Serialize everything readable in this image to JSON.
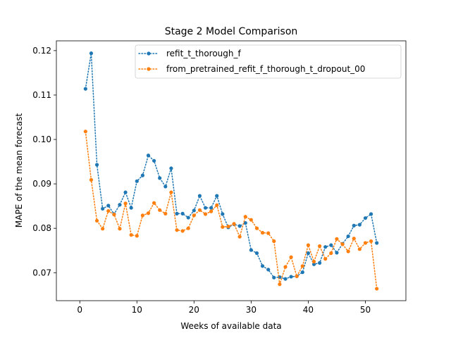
{
  "chart_data": {
    "type": "line",
    "title": "Stage 2 Model Comparison",
    "xlabel": "Weeks of available data",
    "ylabel": "MAPE of the mean forecast",
    "xlim": [
      -4.1,
      57.1
    ],
    "ylim": [
      0.0637,
      0.1222
    ],
    "xticks": [
      0,
      10,
      20,
      30,
      40,
      50
    ],
    "yticks": [
      0.07,
      0.08,
      0.09,
      0.1,
      0.11,
      0.12
    ],
    "grid": false,
    "legend_position": "top-right",
    "x": [
      1,
      2,
      3,
      4,
      5,
      6,
      7,
      8,
      9,
      10,
      11,
      12,
      13,
      14,
      15,
      16,
      17,
      18,
      19,
      20,
      21,
      22,
      23,
      24,
      25,
      26,
      27,
      28,
      29,
      30,
      31,
      32,
      33,
      34,
      35,
      36,
      37,
      38,
      39,
      40,
      41,
      42,
      43,
      44,
      45,
      46,
      47,
      48,
      49,
      50,
      51,
      52
    ],
    "series": [
      {
        "name": "refit_t_thorough_f",
        "color": "#1f77b4",
        "values": [
          0.1114,
          0.1194,
          0.0943,
          0.0844,
          0.0851,
          0.0832,
          0.0853,
          0.0881,
          0.0846,
          0.0906,
          0.0919,
          0.0964,
          0.0952,
          0.0913,
          0.0894,
          0.0935,
          0.0833,
          0.0833,
          0.0824,
          0.084,
          0.0873,
          0.0846,
          0.0846,
          0.0873,
          0.0832,
          0.0802,
          0.0809,
          0.0805,
          0.0812,
          0.0751,
          0.0744,
          0.0715,
          0.0707,
          0.0689,
          0.069,
          0.0686,
          0.0691,
          0.0692,
          0.0701,
          0.0744,
          0.0719,
          0.0722,
          0.0758,
          0.0762,
          0.0745,
          0.0765,
          0.0782,
          0.0806,
          0.0808,
          0.0823,
          0.0832,
          0.0767
        ]
      },
      {
        "name": "from_pretrained_refit_f_thorough_t_dropout_00",
        "color": "#ff7f0e",
        "values": [
          0.1018,
          0.0909,
          0.0817,
          0.0799,
          0.0839,
          0.0831,
          0.0799,
          0.0856,
          0.0785,
          0.0783,
          0.0829,
          0.0834,
          0.0857,
          0.0841,
          0.0833,
          0.0881,
          0.0796,
          0.0794,
          0.08,
          0.0829,
          0.0841,
          0.0832,
          0.0838,
          0.0852,
          0.0803,
          0.0804,
          0.081,
          0.0781,
          0.0826,
          0.0819,
          0.08,
          0.079,
          0.0789,
          0.0771,
          0.0674,
          0.0713,
          0.0735,
          0.0692,
          0.0715,
          0.0762,
          0.0725,
          0.076,
          0.0731,
          0.0744,
          0.0776,
          0.0764,
          0.0748,
          0.0777,
          0.0753,
          0.0767,
          0.0771,
          0.0664
        ]
      }
    ]
  }
}
